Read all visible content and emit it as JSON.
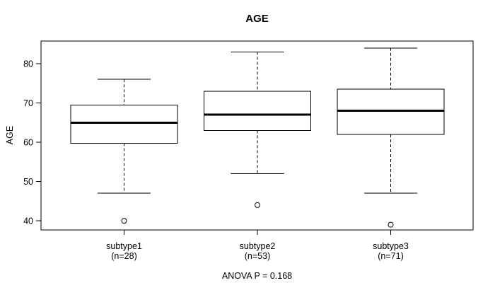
{
  "chart_data": {
    "type": "boxplot",
    "title": "AGE",
    "xlabel": "",
    "ylabel": "AGE",
    "annotation": "ANOVA P = 0.168",
    "y_ticks": [
      40,
      50,
      60,
      70,
      80
    ],
    "ylim": [
      37.7,
      85.8
    ],
    "grid": false,
    "legend": "none",
    "colors": {
      "line": "#000000",
      "background": "#ffffff"
    },
    "groups": [
      {
        "label": "subtype1",
        "n": 28,
        "n_label": "(n=28)",
        "whisker_low": 47,
        "q1": 59.75,
        "median": 65,
        "q3": 69.5,
        "whisker_high": 76,
        "outliers": [
          40
        ]
      },
      {
        "label": "subtype2",
        "n": 53,
        "n_label": "(n=53)",
        "whisker_low": 52,
        "q1": 63,
        "median": 67,
        "q3": 73,
        "whisker_high": 83,
        "outliers": [
          44
        ]
      },
      {
        "label": "subtype3",
        "n": 71,
        "n_label": "(n=71)",
        "whisker_low": 47,
        "q1": 62,
        "median": 68,
        "q3": 73.5,
        "whisker_high": 84,
        "outliers": [
          39
        ]
      }
    ]
  }
}
